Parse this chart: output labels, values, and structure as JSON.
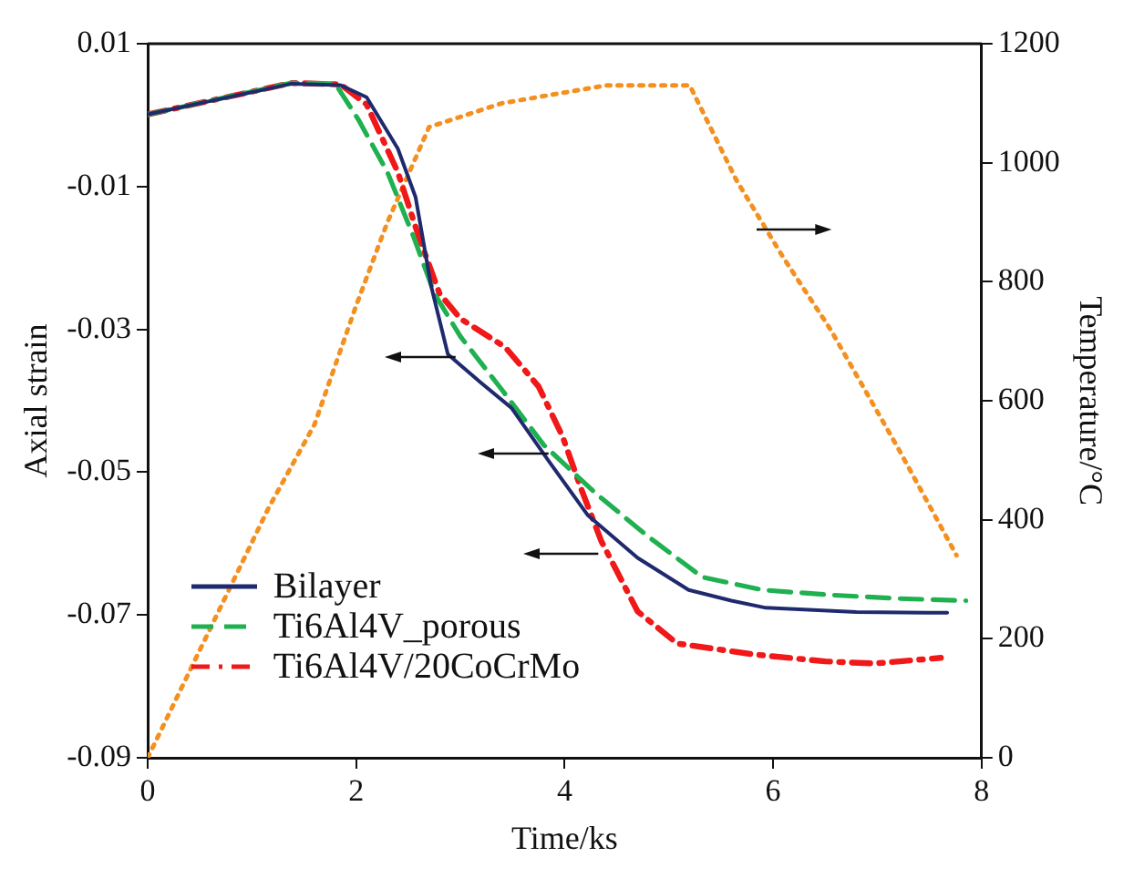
{
  "chart_data": {
    "type": "line",
    "xlabel": "Time/ks",
    "ylabel": "Axial strain",
    "y2label": "Temperature/°C",
    "xlim": [
      0,
      8
    ],
    "xticks": [
      0,
      2,
      4,
      6,
      8
    ],
    "ylim": [
      -0.09,
      0.01
    ],
    "yticks": [
      -0.09,
      -0.07,
      -0.05,
      -0.03,
      -0.01,
      0.01
    ],
    "y2lim": [
      0,
      1200
    ],
    "y2ticks": [
      0,
      200,
      400,
      600,
      800,
      1000,
      1200
    ],
    "grid": false,
    "legend": "bottom left",
    "marker": "none",
    "series": [
      {
        "name": "Bilayer",
        "color": "#1f2a6e",
        "line_style": "solid",
        "x": [
          0,
          1.38,
          1.85,
          2.1,
          2.4,
          2.57,
          2.72,
          2.88,
          3.2,
          3.49,
          3.85,
          4.22,
          4.7,
          5.19,
          5.6,
          5.93,
          6.8,
          7.67
        ],
        "values": [
          0.0001,
          0.0044,
          0.0042,
          0.0025,
          -0.0047,
          -0.0115,
          -0.024,
          -0.0335,
          -0.0375,
          -0.041,
          -0.0485,
          -0.056,
          -0.062,
          -0.0665,
          -0.068,
          -0.069,
          -0.0696,
          -0.0697
        ]
      },
      {
        "name": "Ti6Al4V_porous",
        "color": "#1fb050",
        "line_style": "dashed",
        "x": [
          0,
          1.38,
          1.8,
          2.02,
          2.3,
          2.55,
          2.75,
          3.0,
          3.4,
          3.8,
          4.3,
          4.8,
          5.32,
          5.9,
          6.55,
          7.2,
          7.85
        ],
        "values": [
          0.0001,
          0.0045,
          0.0044,
          -0.0006,
          -0.008,
          -0.017,
          -0.025,
          -0.031,
          -0.0385,
          -0.0462,
          -0.053,
          -0.059,
          -0.0647,
          -0.0665,
          -0.0672,
          -0.0677,
          -0.068
        ]
      },
      {
        "name": "Ti6Al4V/20CoCrMo",
        "color": "#f01818",
        "line_style": "dashdot",
        "x": [
          0,
          1.38,
          1.85,
          2.1,
          2.4,
          2.6,
          2.8,
          3.0,
          3.43,
          3.75,
          3.98,
          4.15,
          4.35,
          4.7,
          5.08,
          5.8,
          6.5,
          6.97,
          7.61
        ],
        "values": [
          0.0001,
          0.0045,
          0.0043,
          0.0015,
          -0.008,
          -0.017,
          -0.025,
          -0.0285,
          -0.0325,
          -0.038,
          -0.045,
          -0.052,
          -0.0596,
          -0.0695,
          -0.074,
          -0.0755,
          -0.0765,
          -0.0768,
          -0.076
        ]
      },
      {
        "color": "#f39020",
        "line_style": "dotted",
        "axis": "y2",
        "x": [
          0,
          1.16,
          1.6,
          2.0,
          2.3,
          2.7,
          3.4,
          4.4,
          5.2,
          5.65,
          6.1,
          6.55,
          7.2,
          7.76
        ],
        "values": [
          0,
          420,
          560,
          760,
          900,
          1060,
          1100,
          1130,
          1130,
          970,
          840,
          720,
          520,
          340
        ]
      }
    ]
  }
}
